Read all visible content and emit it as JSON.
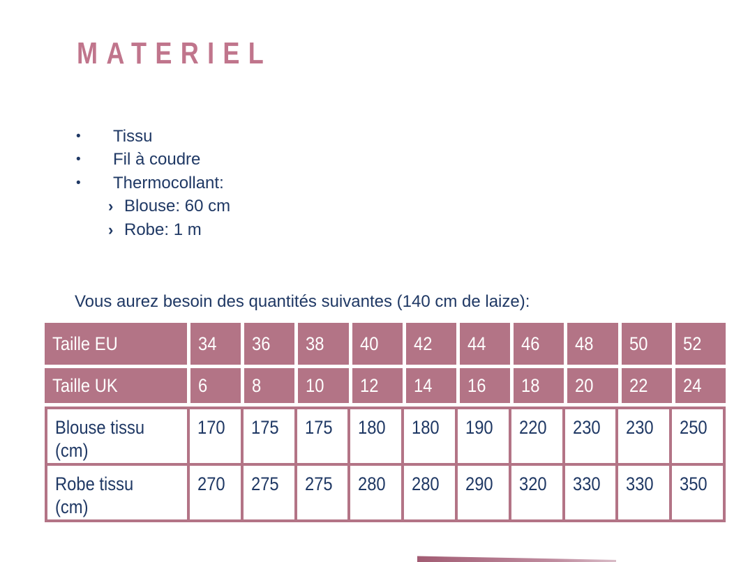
{
  "page": {
    "title": "MATERIEL"
  },
  "materials": {
    "bullet_glyph": "•",
    "sub_bullet_glyph": "›",
    "items": [
      {
        "label": "Tissu"
      },
      {
        "label": "Fil à coudre"
      },
      {
        "label": "Thermocollant:"
      }
    ],
    "sub_items": [
      {
        "label": "Blouse: 60 cm"
      },
      {
        "label": "Robe: 1 m"
      }
    ]
  },
  "intro_text": "Vous aurez besoin des quantités suivantes (140 cm de laize):",
  "size_table": {
    "rows": [
      {
        "label": "Taille EU",
        "values": [
          "34",
          "36",
          "38",
          "40",
          "42",
          "44",
          "46",
          "48",
          "50",
          "52"
        ]
      },
      {
        "label": "Taille UK",
        "values": [
          "6",
          "8",
          "10",
          "12",
          "14",
          "16",
          "18",
          "20",
          "22",
          "24"
        ]
      },
      {
        "label": "Blouse tissu (cm)",
        "values": [
          "170",
          "175",
          "175",
          "180",
          "180",
          "190",
          "220",
          "230",
          "230",
          "250"
        ]
      },
      {
        "label": "Robe tissu (cm)",
        "values": [
          "270",
          "275",
          "275",
          "280",
          "280",
          "290",
          "320",
          "330",
          "330",
          "350"
        ]
      }
    ]
  },
  "colors": {
    "accent_pink": "#b37486",
    "title_pink": "#c0758c",
    "text_navy": "#1f3864"
  }
}
